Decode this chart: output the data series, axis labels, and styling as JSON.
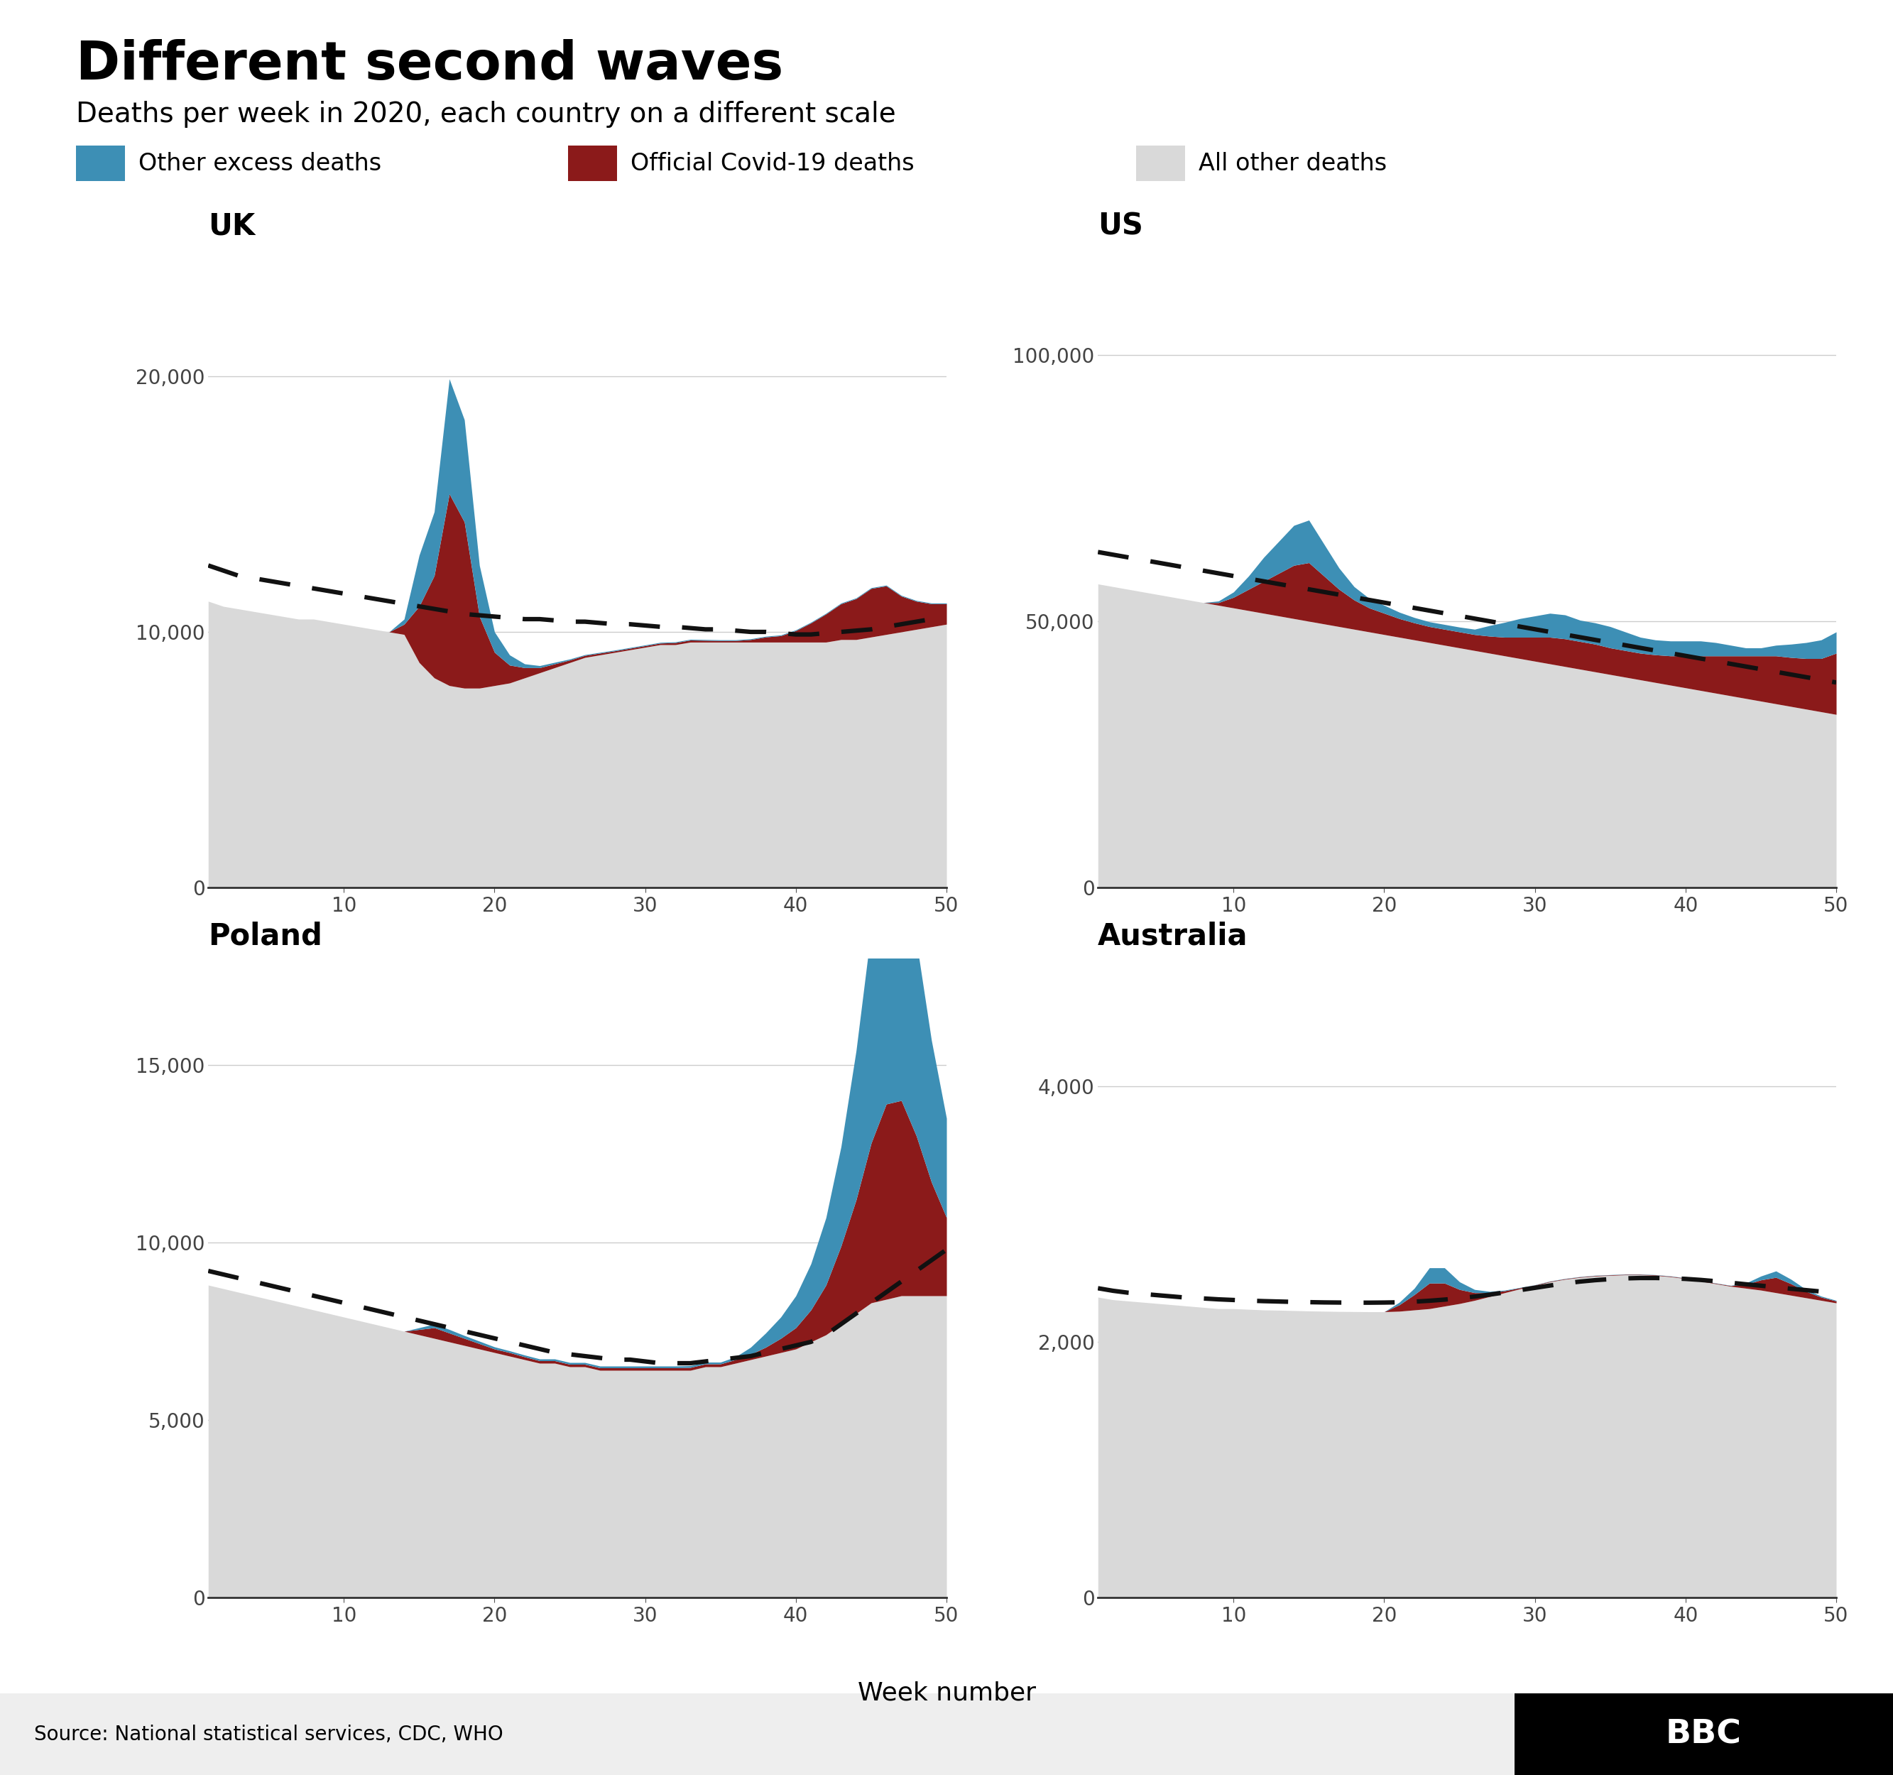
{
  "title": "Different second waves",
  "subtitle": "Deaths per week in 2020, each country on a different scale",
  "source": "Source: National statistical services, CDC, WHO",
  "legend": [
    "Other excess deaths",
    "Official Covid-19 deaths",
    "All other deaths"
  ],
  "colors": {
    "excess": "#3d8fb5",
    "covid": "#8b1a1a",
    "other": "#d9d9d9",
    "dashed": "#111111"
  },
  "weeks": [
    1,
    2,
    3,
    4,
    5,
    6,
    7,
    8,
    9,
    10,
    11,
    12,
    13,
    14,
    15,
    16,
    17,
    18,
    19,
    20,
    21,
    22,
    23,
    24,
    25,
    26,
    27,
    28,
    29,
    30,
    31,
    32,
    33,
    34,
    35,
    36,
    37,
    38,
    39,
    40,
    41,
    42,
    43,
    44,
    45,
    46,
    47,
    48,
    49,
    50
  ],
  "UK": {
    "title": "UK",
    "ylim": [
      0,
      25000
    ],
    "yticks": [
      0,
      10000,
      20000
    ],
    "yticklabels": [
      "0",
      "10,000",
      "20,000"
    ],
    "other_deaths": [
      11200,
      11000,
      10900,
      10800,
      10700,
      10600,
      10500,
      10500,
      10400,
      10300,
      10200,
      10100,
      10000,
      9900,
      8800,
      8200,
      7900,
      7800,
      7800,
      7900,
      8000,
      8200,
      8400,
      8600,
      8800,
      9000,
      9100,
      9200,
      9300,
      9400,
      9500,
      9500,
      9600,
      9600,
      9600,
      9600,
      9600,
      9600,
      9600,
      9600,
      9600,
      9600,
      9700,
      9700,
      9800,
      9900,
      10000,
      10100,
      10200,
      10300
    ],
    "covid": [
      0,
      0,
      0,
      0,
      0,
      0,
      0,
      0,
      0,
      0,
      0,
      0,
      0,
      400,
      2200,
      4000,
      7500,
      6500,
      2800,
      1300,
      700,
      400,
      200,
      150,
      100,
      80,
      70,
      60,
      60,
      60,
      60,
      80,
      80,
      70,
      60,
      60,
      100,
      200,
      250,
      450,
      750,
      1100,
      1400,
      1600,
      1900,
      1900,
      1400,
      1100,
      900,
      800
    ],
    "excess": [
      0,
      0,
      0,
      0,
      0,
      0,
      0,
      0,
      0,
      0,
      0,
      0,
      0,
      200,
      2000,
      2500,
      4500,
      4000,
      2000,
      800,
      400,
      150,
      80,
      60,
      40,
      30,
      30,
      30,
      30,
      30,
      30,
      30,
      30,
      30,
      30,
      30,
      30,
      30,
      30,
      30,
      30,
      30,
      30,
      30,
      30,
      30,
      30,
      30,
      30,
      30
    ],
    "baseline": [
      12600,
      12400,
      12200,
      12100,
      12000,
      11900,
      11800,
      11700,
      11600,
      11500,
      11400,
      11300,
      11200,
      11100,
      11000,
      10900,
      10800,
      10700,
      10650,
      10600,
      10550,
      10500,
      10500,
      10450,
      10400,
      10400,
      10350,
      10300,
      10300,
      10250,
      10200,
      10200,
      10150,
      10100,
      10100,
      10050,
      10000,
      10000,
      9950,
      9900,
      9900,
      9950,
      10000,
      10050,
      10100,
      10200,
      10300,
      10400,
      10500,
      10600
    ]
  },
  "US": {
    "title": "US",
    "ylim": [
      0,
      120000
    ],
    "yticks": [
      0,
      50000,
      100000
    ],
    "yticklabels": [
      "0",
      "50,000",
      "100,000"
    ],
    "other_deaths": [
      57000,
      56500,
      56000,
      55500,
      55000,
      54500,
      54000,
      53500,
      53000,
      52500,
      52000,
      51500,
      51000,
      50500,
      50000,
      49500,
      49000,
      48500,
      48000,
      47500,
      47000,
      46500,
      46000,
      45500,
      45000,
      44500,
      44000,
      43500,
      43000,
      42500,
      42000,
      41500,
      41000,
      40500,
      40000,
      39500,
      39000,
      38500,
      38000,
      37500,
      37000,
      36500,
      36000,
      35500,
      35000,
      34500,
      34000,
      33500,
      33000,
      32500
    ],
    "covid": [
      0,
      0,
      0,
      0,
      0,
      0,
      0,
      0,
      500,
      2000,
      4000,
      6000,
      8000,
      10000,
      11000,
      9000,
      7000,
      5500,
      4500,
      4000,
      3500,
      3200,
      3000,
      3000,
      3000,
      3000,
      3200,
      3500,
      4000,
      4500,
      5000,
      5200,
      5200,
      5200,
      5000,
      5000,
      5000,
      5200,
      5500,
      6000,
      6500,
      7000,
      7500,
      8000,
      8500,
      9000,
      9200,
      9500,
      10000,
      11500
    ],
    "excess": [
      0,
      0,
      0,
      0,
      0,
      0,
      0,
      0,
      300,
      1000,
      2500,
      4500,
      6000,
      7500,
      8000,
      6000,
      4000,
      2500,
      1800,
      1500,
      1200,
      1000,
      900,
      900,
      900,
      1000,
      2000,
      2800,
      3500,
      4000,
      4500,
      4500,
      4000,
      4000,
      4000,
      3500,
      3000,
      2800,
      2800,
      2800,
      2800,
      2500,
      2000,
      1500,
      1500,
      2000,
      2500,
      3000,
      3500,
      4000
    ],
    "baseline": [
      63000,
      62500,
      62000,
      61500,
      61000,
      60500,
      60000,
      59500,
      59000,
      58500,
      58000,
      57500,
      57000,
      56500,
      56000,
      55500,
      55000,
      54500,
      54000,
      53500,
      53000,
      52500,
      52000,
      51500,
      51000,
      50500,
      50000,
      49500,
      49000,
      48500,
      48000,
      47500,
      47000,
      46500,
      46000,
      45500,
      45000,
      44500,
      44000,
      43500,
      43000,
      42500,
      42000,
      41500,
      41000,
      40500,
      40000,
      39500,
      39000,
      38500
    ]
  },
  "Poland": {
    "title": "Poland",
    "ylim": [
      0,
      18000
    ],
    "yticks": [
      0,
      5000,
      10000,
      15000
    ],
    "yticklabels": [
      "0",
      "5,000",
      "10,000",
      "15,000"
    ],
    "other_deaths": [
      8800,
      8700,
      8600,
      8500,
      8400,
      8300,
      8200,
      8100,
      8000,
      7900,
      7800,
      7700,
      7600,
      7500,
      7400,
      7300,
      7200,
      7100,
      7000,
      6900,
      6800,
      6700,
      6600,
      6600,
      6500,
      6500,
      6400,
      6400,
      6400,
      6400,
      6400,
      6400,
      6400,
      6500,
      6500,
      6600,
      6700,
      6800,
      6900,
      7000,
      7200,
      7400,
      7700,
      8000,
      8300,
      8400,
      8500,
      8500,
      8500,
      8500
    ],
    "covid": [
      0,
      0,
      0,
      0,
      0,
      0,
      0,
      0,
      0,
      0,
      0,
      0,
      0,
      0,
      150,
      300,
      250,
      200,
      150,
      100,
      100,
      80,
      70,
      70,
      70,
      70,
      70,
      70,
      70,
      70,
      70,
      70,
      80,
      80,
      80,
      100,
      150,
      250,
      400,
      600,
      900,
      1400,
      2200,
      3200,
      4500,
      5500,
      5500,
      4500,
      3200,
      2200
    ],
    "excess": [
      0,
      0,
      0,
      0,
      0,
      0,
      0,
      0,
      0,
      0,
      0,
      0,
      0,
      0,
      50,
      100,
      100,
      80,
      70,
      60,
      50,
      50,
      50,
      50,
      50,
      50,
      50,
      50,
      50,
      50,
      50,
      50,
      50,
      50,
      50,
      80,
      200,
      400,
      600,
      900,
      1300,
      1900,
      2800,
      4200,
      6000,
      7200,
      7000,
      5500,
      4000,
      2800
    ],
    "baseline": [
      9200,
      9100,
      9000,
      8900,
      8800,
      8700,
      8600,
      8500,
      8400,
      8300,
      8200,
      8100,
      8000,
      7900,
      7800,
      7700,
      7600,
      7500,
      7400,
      7300,
      7200,
      7100,
      7000,
      6900,
      6850,
      6800,
      6750,
      6700,
      6700,
      6650,
      6600,
      6600,
      6600,
      6650,
      6700,
      6750,
      6800,
      6900,
      7000,
      7100,
      7200,
      7400,
      7700,
      8000,
      8300,
      8600,
      8900,
      9200,
      9500,
      9800
    ]
  },
  "Australia": {
    "title": "Australia",
    "ylim": [
      0,
      5000
    ],
    "yticks": [
      0,
      2000,
      4000
    ],
    "yticklabels": [
      "0",
      "2,000",
      "4,000"
    ],
    "other_deaths": [
      2350,
      2330,
      2320,
      2310,
      2300,
      2290,
      2280,
      2270,
      2260,
      2260,
      2255,
      2250,
      2248,
      2245,
      2242,
      2240,
      2238,
      2237,
      2236,
      2236,
      2240,
      2250,
      2260,
      2280,
      2300,
      2325,
      2355,
      2385,
      2415,
      2440,
      2470,
      2490,
      2505,
      2515,
      2520,
      2525,
      2525,
      2520,
      2510,
      2495,
      2475,
      2455,
      2435,
      2420,
      2405,
      2385,
      2365,
      2345,
      2325,
      2305
    ],
    "covid": [
      0,
      0,
      0,
      0,
      0,
      0,
      0,
      0,
      0,
      0,
      0,
      0,
      0,
      0,
      0,
      0,
      0,
      0,
      0,
      0,
      50,
      120,
      200,
      180,
      110,
      60,
      30,
      15,
      8,
      5,
      4,
      4,
      4,
      4,
      4,
      4,
      4,
      4,
      4,
      4,
      4,
      4,
      5,
      30,
      80,
      120,
      90,
      50,
      25,
      15
    ],
    "excess": [
      0,
      0,
      0,
      0,
      0,
      0,
      0,
      0,
      0,
      0,
      0,
      0,
      0,
      0,
      0,
      0,
      0,
      0,
      0,
      0,
      20,
      50,
      120,
      120,
      60,
      25,
      10,
      5,
      3,
      2,
      2,
      2,
      2,
      2,
      2,
      2,
      2,
      2,
      2,
      2,
      2,
      2,
      2,
      10,
      30,
      50,
      35,
      15,
      8,
      5
    ],
    "baseline": [
      2420,
      2400,
      2385,
      2375,
      2365,
      2355,
      2345,
      2340,
      2333,
      2328,
      2323,
      2319,
      2316,
      2313,
      2311,
      2309,
      2308,
      2307,
      2307,
      2308,
      2310,
      2315,
      2322,
      2331,
      2342,
      2355,
      2370,
      2387,
      2405,
      2423,
      2441,
      2458,
      2472,
      2483,
      2491,
      2497,
      2500,
      2500,
      2498,
      2493,
      2485,
      2475,
      2463,
      2451,
      2440,
      2428,
      2416,
      2405,
      2394,
      2384
    ]
  }
}
